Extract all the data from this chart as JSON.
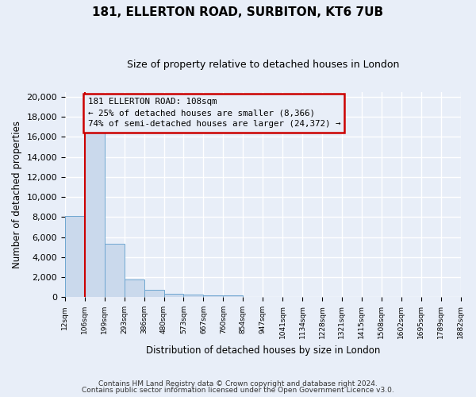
{
  "title1": "181, ELLERTON ROAD, SURBITON, KT6 7UB",
  "title2": "Size of property relative to detached houses in London",
  "xlabel": "Distribution of detached houses by size in London",
  "ylabel": "Number of detached properties",
  "bar_labels": [
    "12sqm",
    "106sqm",
    "199sqm",
    "293sqm",
    "386sqm",
    "480sqm",
    "573sqm",
    "667sqm",
    "760sqm",
    "854sqm",
    "947sqm",
    "1041sqm",
    "1134sqm",
    "1228sqm",
    "1321sqm",
    "1415sqm",
    "1508sqm",
    "1602sqm",
    "1695sqm",
    "1789sqm",
    "1882sqm"
  ],
  "bar_heights": [
    8100,
    16500,
    5300,
    1800,
    750,
    350,
    250,
    200,
    150,
    50,
    20,
    10,
    5,
    3,
    2,
    1,
    1,
    1,
    0,
    0
  ],
  "bar_color": "#cad9ec",
  "bar_edge_color": "#6ea6d0",
  "ylim_max": 20500,
  "yticks": [
    0,
    2000,
    4000,
    6000,
    8000,
    10000,
    12000,
    14000,
    16000,
    18000,
    20000
  ],
  "property_line_x": 1.0,
  "annotation_line1": "181 ELLERTON ROAD: 108sqm",
  "annotation_line2": "← 25% of detached houses are smaller (8,366)",
  "annotation_line3": "74% of semi-detached houses are larger (24,372) →",
  "annotation_box_color": "#cc0000",
  "footer1": "Contains HM Land Registry data © Crown copyright and database right 2024.",
  "footer2": "Contains public sector information licensed under the Open Government Licence v3.0.",
  "bg_color": "#e8eef8",
  "grid_color": "#ffffff",
  "num_bins": 20
}
